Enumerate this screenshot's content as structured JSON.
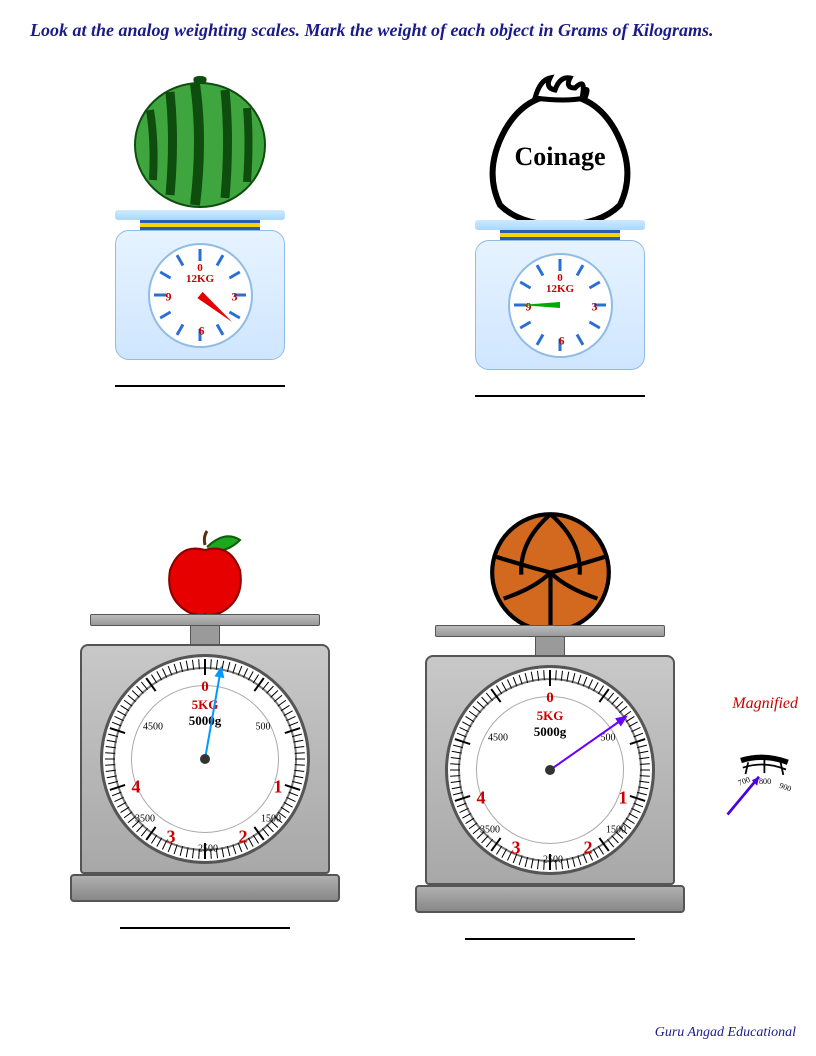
{
  "instruction": "Look at the analog weighting scales. Mark the weight of each object in Grams of Kilograms.",
  "footer": "Guru Angad Educational",
  "magnified_label": "Magnified",
  "scales_top": {
    "max_label": "12KG",
    "dial_numbers": [
      "0",
      "3",
      "6",
      "9"
    ],
    "tick_color": "#2a6fd6",
    "num_color": "#cc0000",
    "body_bg": "#e6f3ff"
  },
  "scale_watermelon": {
    "object": "watermelon",
    "needle_color": "#e60000",
    "needle_angle_deg": 130,
    "reading_approx_kg": 4.3
  },
  "scale_coinage": {
    "object": "coinage-bag",
    "bag_label": "Coinage",
    "needle_color": "#00aa00",
    "needle_angle_deg": 270,
    "reading_approx_kg": 9
  },
  "scales_bottom": {
    "zero_label": "0",
    "max_kg_label": "5KG",
    "max_g_label": "5000g",
    "main_numbers": [
      "1",
      "2",
      "3",
      "4"
    ],
    "sub_numbers": [
      "500",
      "1500",
      "2500",
      "3500",
      "4500"
    ],
    "face_border": "#555555",
    "housing_bg": "#b8b8b8"
  },
  "scale_apple": {
    "object": "apple",
    "needle_color": "#0099ff",
    "needle_angle_deg": 10,
    "reading_approx_g": 150
  },
  "scale_ball": {
    "object": "volleyball",
    "ball_color": "#d2691e",
    "needle_color": "#6a00ff",
    "needle_angle_deg": 55,
    "reading_approx_g": 800
  },
  "magnified_ticks": [
    "700",
    "800",
    "900"
  ],
  "colors": {
    "instruction_text": "#1a1a8a",
    "red": "#cc0000",
    "blue_tick": "#2a6fd6",
    "green_needle": "#00aa00",
    "apple_fill": "#e60000",
    "leaf_fill": "#1fa81f",
    "watermelon_light": "#3fa63f",
    "watermelon_dark": "#0e4d0e"
  }
}
